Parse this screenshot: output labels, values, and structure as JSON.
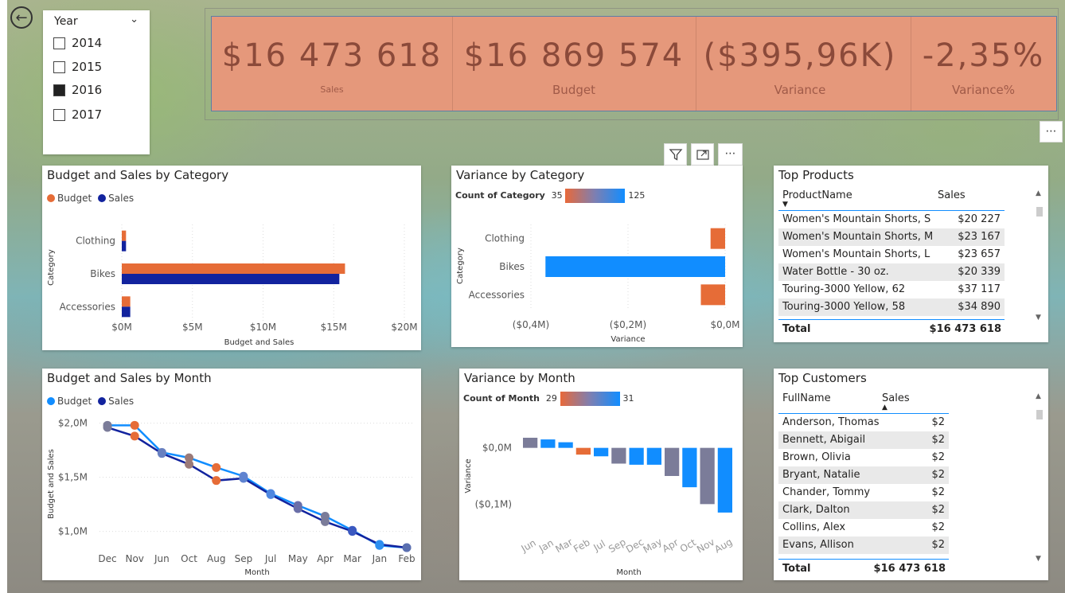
{
  "nav": {
    "back_glyph": "←"
  },
  "slicer": {
    "title": "Year",
    "chevron": "⌄",
    "options": [
      {
        "label": "2014",
        "checked": false
      },
      {
        "label": "2015",
        "checked": false
      },
      {
        "label": "2016",
        "checked": true
      },
      {
        "label": "2017",
        "checked": false
      }
    ]
  },
  "kpi": [
    {
      "value": "$16 473 618",
      "label": "Sales"
    },
    {
      "value": "$16 869 574",
      "label": "Budget"
    },
    {
      "value": "($395,96K)",
      "label": "Variance"
    },
    {
      "value": "-2,35%",
      "label": "Variance%"
    }
  ],
  "visual_header": {
    "filter": "filter-icon",
    "focus": "focus-mode-icon",
    "more": "⋯"
  },
  "more_glyph": "⋯",
  "colors": {
    "budget": "#e66c37",
    "sales": "#12239e",
    "variance": "#118dff",
    "neutral": "#7b7c99",
    "kpi_bg": "#e5987b"
  },
  "budget_sales_category": {
    "title": "Budget and Sales by Category",
    "legend": [
      "Budget",
      "Sales"
    ],
    "chart_data": {
      "type": "bar",
      "categories": [
        "Clothing",
        "Bikes",
        "Accessories"
      ],
      "series": [
        {
          "name": "Budget",
          "values": [
            0.3,
            15.8,
            0.6
          ]
        },
        {
          "name": "Sales",
          "values": [
            0.3,
            15.4,
            0.6
          ]
        }
      ],
      "xlabel": "Budget and Sales",
      "ylabel": "Category",
      "ticks": [
        "$0M",
        "$5M",
        "$10M",
        "$15M",
        "$20M"
      ],
      "xlim": [
        0,
        20
      ]
    }
  },
  "variance_category": {
    "title": "Variance by Category",
    "count_label": "Count of Category",
    "count_min": "35",
    "count_max": "125",
    "chart_data": {
      "type": "bar",
      "categories": [
        "Clothing",
        "Bikes",
        "Accessories"
      ],
      "values": [
        -0.03,
        -0.37,
        -0.05
      ],
      "xlabel": "Variance",
      "ylabel": "Category",
      "ticks": [
        "($0,4M)",
        "($0,2M)",
        "$0,0M"
      ],
      "xlim": [
        -0.4,
        0
      ]
    }
  },
  "top_products": {
    "title": "Top Products",
    "headers": [
      "ProductName",
      "Sales"
    ],
    "rows": [
      [
        "Women's Mountain Shorts, S",
        "$20 227"
      ],
      [
        "Women's Mountain Shorts, M",
        "$23 167"
      ],
      [
        "Women's Mountain Shorts, L",
        "$23 657"
      ],
      [
        "Water Bottle - 30 oz.",
        "$20 339"
      ],
      [
        "Touring-3000 Yellow, 62",
        "$37 117"
      ],
      [
        "Touring-3000 Yellow, 58",
        "$34 890"
      ]
    ],
    "total_label": "Total",
    "total_value": "$16 473 618"
  },
  "budget_sales_month": {
    "title": "Budget and Sales by Month",
    "legend": [
      "Budget",
      "Sales"
    ],
    "chart_data": {
      "type": "line",
      "categories": [
        "Dec",
        "Nov",
        "Jun",
        "Oct",
        "Aug",
        "Sep",
        "Jul",
        "May",
        "Apr",
        "Mar",
        "Jan",
        "Feb"
      ],
      "series": [
        {
          "name": "Budget",
          "values": [
            1.98,
            1.98,
            1.73,
            1.68,
            1.59,
            1.51,
            1.35,
            1.24,
            1.14,
            1.01,
            0.87,
            0.85
          ]
        },
        {
          "name": "Sales",
          "values": [
            1.96,
            1.88,
            1.72,
            1.62,
            1.47,
            1.49,
            1.34,
            1.21,
            1.09,
            1.0,
            0.88,
            0.85
          ]
        }
      ],
      "xlabel": "Month",
      "ylabel": "Budget and Sales",
      "ticks": [
        "$2,0M",
        "$1,5M",
        "$1,0M"
      ],
      "ylim": [
        0.85,
        2.1
      ]
    }
  },
  "variance_month": {
    "title": "Variance by Month",
    "count_label": "Count of Month",
    "count_min": "29",
    "count_max": "31",
    "chart_data": {
      "type": "bar",
      "categories": [
        "Jun",
        "Jan",
        "Mar",
        "Feb",
        "Jul",
        "Sep",
        "Dec",
        "May",
        "Apr",
        "Oct",
        "Nov",
        "Aug"
      ],
      "values": [
        0.018,
        0.015,
        0.01,
        -0.012,
        -0.015,
        -0.028,
        -0.03,
        -0.03,
        -0.05,
        -0.07,
        -0.1,
        -0.115
      ],
      "xlabel": "Month",
      "ylabel": "Variance",
      "ticks": [
        "$0,0M",
        "($0,1M)"
      ],
      "ylim": [
        -0.125,
        0.025
      ]
    }
  },
  "top_customers": {
    "title": "Top Customers",
    "headers": [
      "FullName",
      "Sales"
    ],
    "rows": [
      [
        "Anderson, Thomas",
        "$2"
      ],
      [
        "Bennett, Abigail",
        "$2"
      ],
      [
        "Brown, Olivia",
        "$2"
      ],
      [
        "Bryant, Natalie",
        "$2"
      ],
      [
        "Chander, Tommy",
        "$2"
      ],
      [
        "Clark, Dalton",
        "$2"
      ],
      [
        "Collins, Alex",
        "$2"
      ],
      [
        "Evans, Allison",
        "$2"
      ]
    ],
    "total_label": "Total",
    "total_value": "$16 473 618"
  }
}
